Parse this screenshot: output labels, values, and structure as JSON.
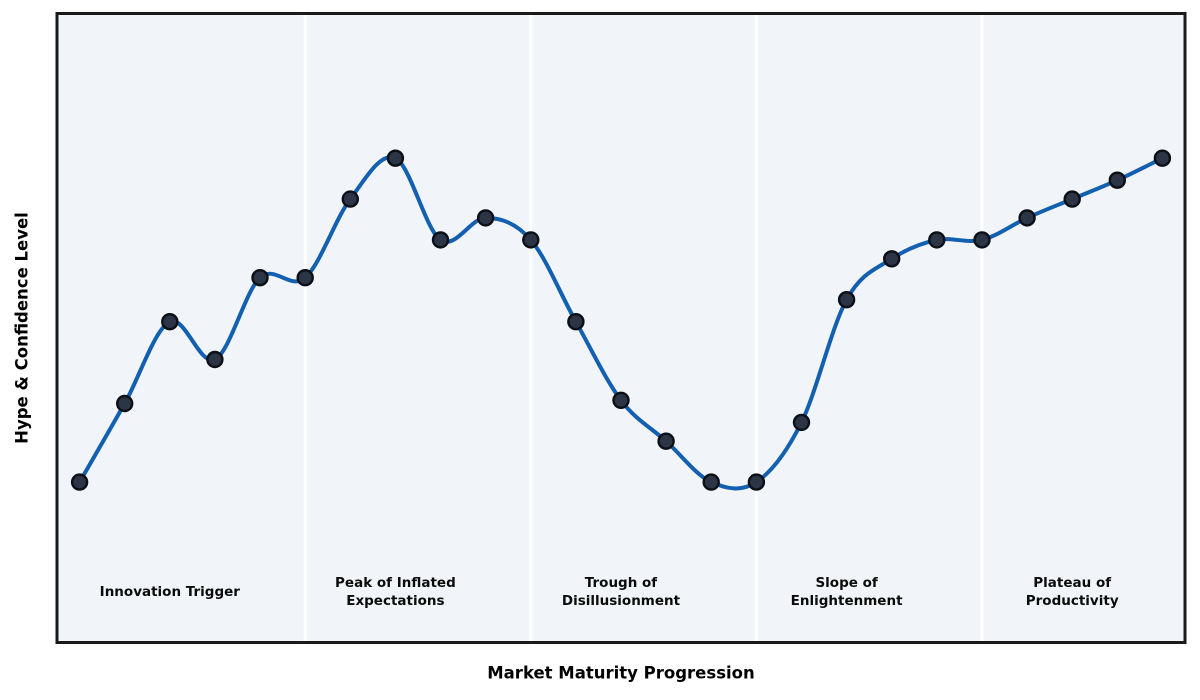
{
  "chart_data": {
    "type": "line",
    "title": "",
    "xlabel": "Market Maturity Progression",
    "ylabel": "Hype & Confidence Level",
    "x": [
      0,
      1,
      2,
      3,
      4,
      5,
      6,
      7,
      8,
      9,
      10,
      11,
      12,
      13,
      14,
      15,
      16,
      17,
      18,
      19,
      20,
      21,
      22,
      23,
      24
    ],
    "values": [
      25.5,
      38,
      51,
      45,
      58,
      58,
      70.5,
      77,
      64,
      67.5,
      64,
      51,
      38.5,
      32,
      25.5,
      25.5,
      35,
      54.5,
      61,
      64,
      64,
      67.5,
      70.5,
      73.5,
      77
    ],
    "xlim": [
      -0.5,
      24.5
    ],
    "ylim": [
      0,
      100
    ],
    "grid": false,
    "legend": null,
    "ticks_visible": false,
    "curve_style": "smooth-spline-with-markers",
    "phase_dividers_x": [
      5,
      10,
      15,
      20
    ],
    "phase_label_y": 8,
    "phases": [
      {
        "label": "Innovation Trigger",
        "center_x": 2
      },
      {
        "label": "Peak of Inflated\nExpectations",
        "center_x": 7
      },
      {
        "label": "Trough of\nDisillusionment",
        "center_x": 12
      },
      {
        "label": "Slope of\nEnlightenment",
        "center_x": 17
      },
      {
        "label": "Plateau of\nProductivity",
        "center_x": 22
      }
    ],
    "colors": {
      "line": "#135fb0",
      "marker_fill": "#2b3545",
      "marker_edge": "#0b0f16",
      "plot_background": "#f1f5f9",
      "frame": "#1a1a1a",
      "divider": "#ffffff",
      "text": "#000000",
      "page_background": "#ffffff"
    }
  }
}
